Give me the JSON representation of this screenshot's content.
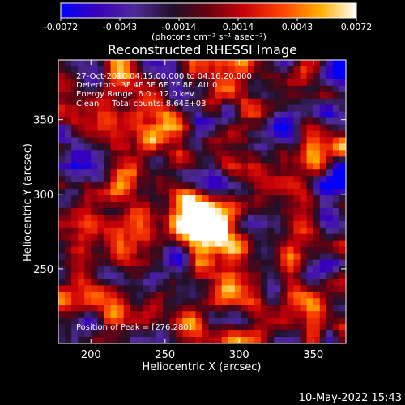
{
  "chart_data": {
    "type": "heatmap",
    "title": "Reconstructed RHESSI Image",
    "xlabel": "Heliocentric X (arcsec)",
    "ylabel": "Heliocentric Y (arcsec)",
    "xlim": [
      178,
      372
    ],
    "ylim": [
      200,
      390
    ],
    "xticks": [
      200,
      250,
      300,
      350
    ],
    "yticks": [
      250,
      300,
      350
    ],
    "grid": false,
    "peak": [
      276,
      280
    ],
    "colorbar": {
      "range": [
        -0.0072,
        0.0072
      ],
      "ticks": [
        "-0.0072",
        "-0.0043",
        "-0.0014",
        "0.0014",
        "0.0043",
        "0.0072"
      ],
      "units": "(photons cm⁻² s⁻¹ asec⁻²)",
      "stops": [
        "#0000ff",
        "#3a00b8",
        "#4f2a9a",
        "#201028",
        "#6a0010",
        "#c80008",
        "#ff4400",
        "#ffb000",
        "#ffffff"
      ]
    },
    "annotations": [
      "27-Oct-2010 04:15:00.000 to 04:16:20.000",
      "Detectors: 3F 4F 5F 6F 7F 8F, Att 0",
      "Energy Range: 6.0 - 12.0 keV",
      "Clean     Total counts: 8.64E+03"
    ],
    "peak_label": "Position of Peak = [276,280]"
  },
  "footer": {
    "timestamp": "10-May-2022 15:43"
  }
}
